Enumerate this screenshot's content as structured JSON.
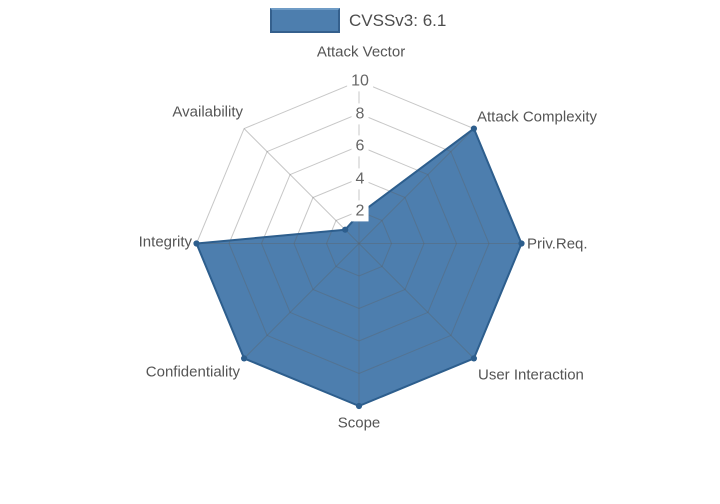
{
  "legend": {
    "label": "CVSSv3: 6.1"
  },
  "chart_data": {
    "type": "radar",
    "title": "",
    "categories": [
      "Attack Vector",
      "Attack Complexity",
      "Priv.Req.",
      "User Interaction",
      "Scope",
      "Confidentiality",
      "Integrity",
      "Availability"
    ],
    "series": [
      {
        "name": "CVSSv3: 6.1",
        "values": [
          1.8,
          10,
          10,
          10,
          10,
          10,
          10,
          1.2
        ]
      }
    ],
    "radial_ticks": [
      2,
      4,
      6,
      8,
      10
    ],
    "range": [
      0,
      10
    ],
    "grid": "polygon-rings-and-spokes",
    "legend_position": "top-center",
    "colors": {
      "fill": "#4d7eae",
      "line": "#2d5e8d",
      "grid": "#c3c3c3",
      "axis_text": "#555555",
      "tick_text": "#666666",
      "background": "#ffffff"
    }
  }
}
